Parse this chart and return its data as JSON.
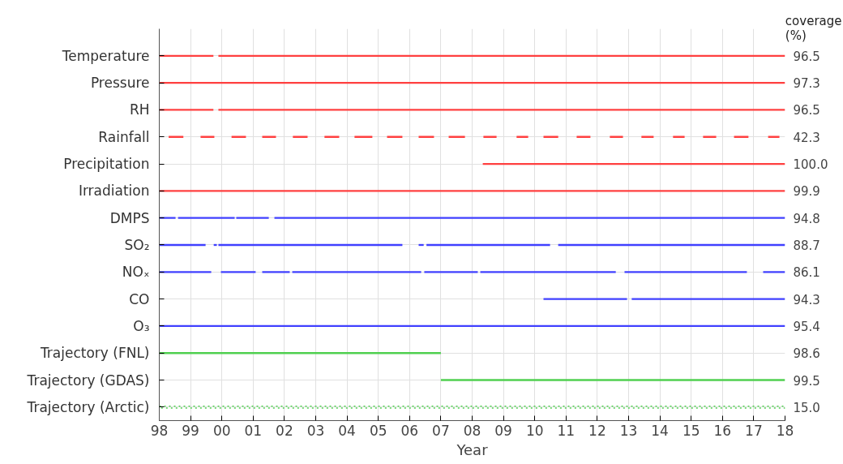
{
  "chart_data": {
    "type": "bar",
    "orientation": "horizontal",
    "xlabel": "Year",
    "y2label": "coverage (%)",
    "categories": [
      "Temperature",
      "Pressure",
      "RH",
      "Rainfall",
      "Precipitation",
      "Irradiation",
      "DMPS",
      "SO₂",
      "NOₓ",
      "CO",
      "O₃",
      "Trajectory (FNL)",
      "Trajectory (GDAS)",
      "Trajectory (Arctic)"
    ],
    "y2_categories": [
      "96.5",
      "97.3",
      "96.5",
      "42.3",
      "100.0",
      "99.9",
      "94.8",
      "88.7",
      "86.1",
      "94.3",
      "95.4",
      "98.6",
      "99.5",
      "15.0"
    ],
    "xlim": [
      1998,
      2018
    ],
    "xticks": [
      {
        "value": 1998,
        "label": "98"
      },
      {
        "value": 1999,
        "label": "99"
      },
      {
        "value": 2000,
        "label": "00"
      },
      {
        "value": 2001,
        "label": "01"
      },
      {
        "value": 2002,
        "label": "02"
      },
      {
        "value": 2003,
        "label": "03"
      },
      {
        "value": 2004,
        "label": "04"
      },
      {
        "value": 2005,
        "label": "05"
      },
      {
        "value": 2006,
        "label": "06"
      },
      {
        "value": 2007,
        "label": "07"
      },
      {
        "value": 2008,
        "label": "08"
      },
      {
        "value": 2009,
        "label": "09"
      },
      {
        "value": 2010,
        "label": "10"
      },
      {
        "value": 2011,
        "label": "11"
      },
      {
        "value": 2012,
        "label": "12"
      },
      {
        "value": 2013,
        "label": "13"
      },
      {
        "value": 2014,
        "label": "14"
      },
      {
        "value": 2015,
        "label": "15"
      },
      {
        "value": 2016,
        "label": "16"
      },
      {
        "value": 2017,
        "label": "17"
      },
      {
        "value": 2018,
        "label": "18"
      }
    ],
    "grid": true,
    "line_style": "solid",
    "series": [
      {
        "colors": [
          "#ff4040",
          "#ff4040",
          "#ff4040",
          "#ff4040",
          "#ff4040",
          "#ff4040",
          "#4040ff",
          "#4040ff",
          "#4040ff",
          "#4040ff",
          "#4040ff",
          "#50d050",
          "#50d050",
          null
        ],
        "base": [
          1998,
          1998,
          1998,
          1998.3,
          2008.34,
          1998,
          1998,
          1998,
          1998,
          2010.28,
          1998,
          1998,
          2007,
          null
        ],
        "values": [
          1.73,
          20,
          1.73,
          0.47,
          9.66,
          20,
          0.52,
          1.48,
          1.66,
          2.67,
          20,
          9,
          11,
          null
        ]
      },
      {
        "colors": [
          "#ff4040",
          null,
          "#ff4040",
          "#ff4040",
          null,
          null,
          "#4040ff",
          "#4040ff",
          "#4040ff",
          "#4040ff",
          null,
          null,
          null,
          null
        ],
        "base": [
          1999.89,
          null,
          1999.89,
          1999.32,
          null,
          null,
          1998.6,
          1999.74,
          1999.97,
          2013.1,
          null,
          null,
          null,
          null
        ],
        "values": [
          18.11,
          null,
          18.11,
          0.44,
          null,
          null,
          1.81,
          0.1,
          1.11,
          4.9,
          null,
          null,
          null,
          null
        ]
      },
      {
        "colors": [
          null,
          null,
          null,
          "#ff4040",
          null,
          null,
          "#4040ff",
          "#4040ff",
          "#4040ff",
          null,
          null,
          null,
          null,
          null
        ],
        "base": [
          null,
          null,
          null,
          2000.31,
          null,
          null,
          2000.46,
          1999.89,
          2001.29,
          null,
          null,
          null,
          null,
          null
        ],
        "values": [
          null,
          null,
          null,
          0.46,
          null,
          null,
          1.04,
          5.88,
          0.88,
          null,
          null,
          null,
          null,
          null
        ]
      },
      {
        "colors": [
          null,
          null,
          null,
          "#ff4040",
          null,
          null,
          "#4040ff",
          "#4040ff",
          "#4040ff",
          null,
          null,
          null,
          null,
          null
        ],
        "base": [
          null,
          null,
          null,
          2001.29,
          null,
          null,
          2001.68,
          2006.29,
          2002.25,
          null,
          null,
          null,
          null,
          null
        ],
        "values": [
          null,
          null,
          null,
          0.44,
          null,
          null,
          16.32,
          0.16,
          4.12,
          null,
          null,
          null,
          null,
          null
        ]
      },
      {
        "colors": [
          null,
          null,
          null,
          "#ff4040",
          null,
          null,
          null,
          "#4040ff",
          "#4040ff",
          null,
          null,
          null,
          null,
          null
        ],
        "base": [
          null,
          null,
          null,
          2002.27,
          null,
          null,
          null,
          2006.54,
          2006.47,
          null,
          null,
          null,
          null,
          null
        ],
        "values": [
          null,
          null,
          null,
          0.47,
          null,
          null,
          null,
          3.95,
          1.71,
          null,
          null,
          null,
          null,
          null
        ]
      },
      {
        "colors": [
          null,
          null,
          null,
          "#ff4040",
          null,
          null,
          null,
          "#4040ff",
          "#4040ff",
          null,
          null,
          null,
          null,
          null
        ],
        "base": [
          null,
          null,
          null,
          2003.28,
          null,
          null,
          null,
          2010.75,
          2008.26,
          null,
          null,
          null,
          null,
          null
        ],
        "values": [
          null,
          null,
          null,
          0.47,
          null,
          null,
          null,
          7.25,
          4.33,
          null,
          null,
          null,
          null,
          null
        ]
      },
      {
        "colors": [
          null,
          null,
          null,
          "#ff4040",
          null,
          null,
          null,
          null,
          "#4040ff",
          null,
          null,
          null,
          null,
          null
        ],
        "base": [
          null,
          null,
          null,
          2004.24,
          null,
          null,
          null,
          null,
          2012.87,
          null,
          null,
          null,
          null,
          null
        ],
        "values": [
          null,
          null,
          null,
          0.57,
          null,
          null,
          null,
          null,
          3.91,
          null,
          null,
          null,
          null,
          null
        ]
      },
      {
        "colors": [
          null,
          null,
          null,
          "#ff4040",
          null,
          null,
          null,
          null,
          "#4040ff",
          null,
          null,
          null,
          null,
          null
        ],
        "base": [
          null,
          null,
          null,
          2005.28,
          null,
          null,
          null,
          null,
          2017.3,
          null,
          null,
          null,
          null,
          null
        ],
        "values": [
          null,
          null,
          null,
          0.49,
          null,
          null,
          null,
          null,
          0.7,
          null,
          null,
          null,
          null,
          null
        ]
      },
      {
        "color": "#ff4040",
        "base": [
          null,
          null,
          null,
          2006.29,
          null,
          null,
          null,
          null,
          null,
          null,
          null,
          null,
          null,
          null
        ],
        "values": [
          null,
          null,
          null,
          0.49,
          null,
          null,
          null,
          null,
          null,
          null,
          null,
          null,
          null,
          null
        ]
      },
      {
        "color": "#ff4040",
        "base": [
          null,
          null,
          null,
          2007.25,
          null,
          null,
          null,
          null,
          null,
          null,
          null,
          null,
          null,
          null
        ],
        "values": [
          null,
          null,
          null,
          0.52,
          null,
          null,
          null,
          null,
          null,
          null,
          null,
          null,
          null,
          null
        ]
      },
      {
        "color": "#ff4040",
        "base": [
          null,
          null,
          null,
          2008.36,
          null,
          null,
          null,
          null,
          null,
          null,
          null,
          null,
          null,
          null
        ],
        "values": [
          null,
          null,
          null,
          0.42,
          null,
          null,
          null,
          null,
          null,
          null,
          null,
          null,
          null,
          null
        ]
      },
      {
        "color": "#ff4040",
        "base": [
          null,
          null,
          null,
          2009.42,
          null,
          null,
          null,
          null,
          null,
          null,
          null,
          null,
          null,
          null
        ],
        "values": [
          null,
          null,
          null,
          0.37,
          null,
          null,
          null,
          null,
          null,
          null,
          null,
          null,
          null,
          null
        ]
      },
      {
        "color": "#ff4040",
        "base": [
          null,
          null,
          null,
          2010.28,
          null,
          null,
          null,
          null,
          null,
          null,
          null,
          null,
          null,
          null
        ],
        "values": [
          null,
          null,
          null,
          0.47,
          null,
          null,
          null,
          null,
          null,
          null,
          null,
          null,
          null,
          null
        ]
      },
      {
        "color": "#ff4040",
        "base": [
          null,
          null,
          null,
          2011.34,
          null,
          null,
          null,
          null,
          null,
          null,
          null,
          null,
          null,
          null
        ],
        "values": [
          null,
          null,
          null,
          0.44,
          null,
          null,
          null,
          null,
          null,
          null,
          null,
          null,
          null,
          null
        ]
      },
      {
        "color": "#ff4040",
        "base": [
          null,
          null,
          null,
          2012.4,
          null,
          null,
          null,
          null,
          null,
          null,
          null,
          null,
          null,
          null
        ],
        "values": [
          null,
          null,
          null,
          0.42,
          null,
          null,
          null,
          null,
          null,
          null,
          null,
          null,
          null,
          null
        ]
      },
      {
        "color": "#ff4040",
        "base": [
          null,
          null,
          null,
          2013.41,
          null,
          null,
          null,
          null,
          null,
          null,
          null,
          null,
          null,
          null
        ],
        "values": [
          null,
          null,
          null,
          0.39,
          null,
          null,
          null,
          null,
          null,
          null,
          null,
          null,
          null,
          null
        ]
      },
      {
        "color": "#ff4040",
        "base": [
          null,
          null,
          null,
          2014.42,
          null,
          null,
          null,
          null,
          null,
          null,
          null,
          null,
          null,
          null
        ],
        "values": [
          null,
          null,
          null,
          0.37,
          null,
          null,
          null,
          null,
          null,
          null,
          null,
          null,
          null,
          null
        ]
      },
      {
        "color": "#ff4040",
        "base": [
          null,
          null,
          null,
          2015.38,
          null,
          null,
          null,
          null,
          null,
          null,
          null,
          null,
          null,
          null
        ],
        "values": [
          null,
          null,
          null,
          0.42,
          null,
          null,
          null,
          null,
          null,
          null,
          null,
          null,
          null,
          null
        ]
      },
      {
        "color": "#ff4040",
        "base": [
          null,
          null,
          null,
          2016.37,
          null,
          null,
          null,
          null,
          null,
          null,
          null,
          null,
          null,
          null
        ],
        "values": [
          null,
          null,
          null,
          0.46,
          null,
          null,
          null,
          null,
          null,
          null,
          null,
          null,
          null,
          null
        ]
      },
      {
        "color": "#ff4040",
        "base": [
          null,
          null,
          null,
          2017.46,
          null,
          null,
          null,
          null,
          null,
          null,
          null,
          null,
          null,
          null
        ],
        "values": [
          null,
          null,
          null,
          0.36,
          null,
          null,
          null,
          null,
          null,
          null,
          null,
          null,
          null,
          null
        ]
      },
      {
        "color": "#50d050",
        "line_style": "dotted",
        "base": [
          null,
          null,
          null,
          null,
          null,
          null,
          null,
          null,
          null,
          null,
          null,
          null,
          null,
          1998
        ],
        "values": [
          null,
          null,
          null,
          null,
          null,
          null,
          null,
          null,
          null,
          null,
          null,
          null,
          null,
          20
        ]
      }
    ]
  }
}
